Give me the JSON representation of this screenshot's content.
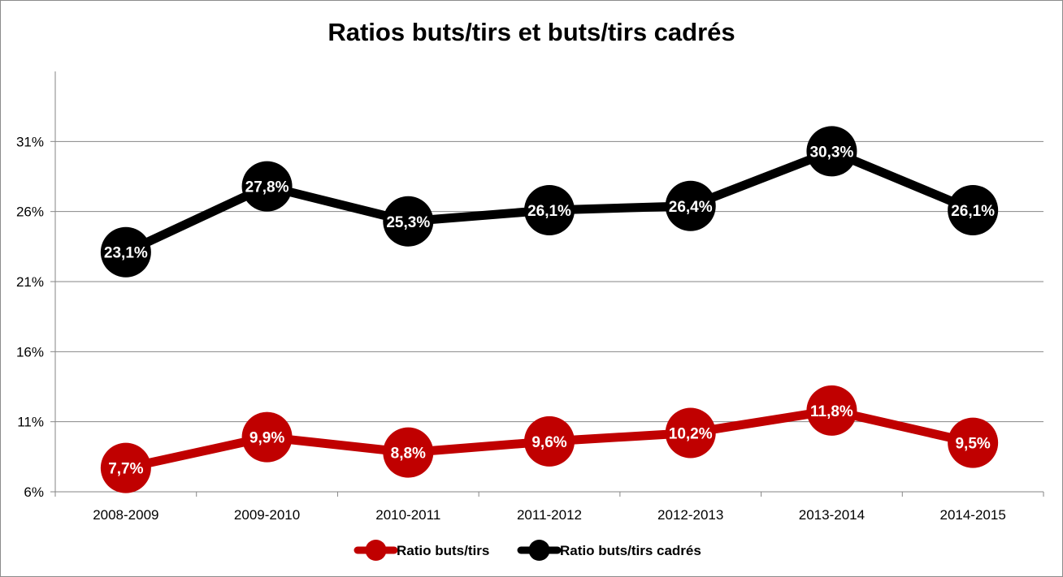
{
  "chart_data": {
    "type": "line",
    "title": "Ratios buts/tirs et buts/tirs cadrés",
    "xlabel": "",
    "ylabel": "",
    "categories": [
      "2008-2009",
      "2009-2010",
      "2010-2011",
      "2011-2012",
      "2012-2013",
      "2013-2014",
      "2014-2015"
    ],
    "ylim": [
      6,
      36
    ],
    "yticks": [
      6,
      11,
      16,
      21,
      26,
      31
    ],
    "ytick_labels": [
      "6%",
      "11%",
      "16%",
      "21%",
      "26%",
      "31%"
    ],
    "grid": true,
    "legend_position": "bottom",
    "series": [
      {
        "name": "Ratio buts/tirs",
        "color": "#c00000",
        "values": [
          7.7,
          9.9,
          8.8,
          9.6,
          10.2,
          11.8,
          9.5
        ],
        "labels": [
          "7,7%",
          "9,9%",
          "8,8%",
          "9,6%",
          "10,2%",
          "11,8%",
          "9,5%"
        ]
      },
      {
        "name": "Ratio buts/tirs cadrés",
        "color": "#000000",
        "values": [
          23.1,
          27.8,
          25.3,
          26.1,
          26.4,
          30.3,
          26.1
        ],
        "labels": [
          "23,1%",
          "27,8%",
          "25,3%",
          "26,1%",
          "26,4%",
          "30,3%",
          "26,1%"
        ]
      }
    ]
  }
}
